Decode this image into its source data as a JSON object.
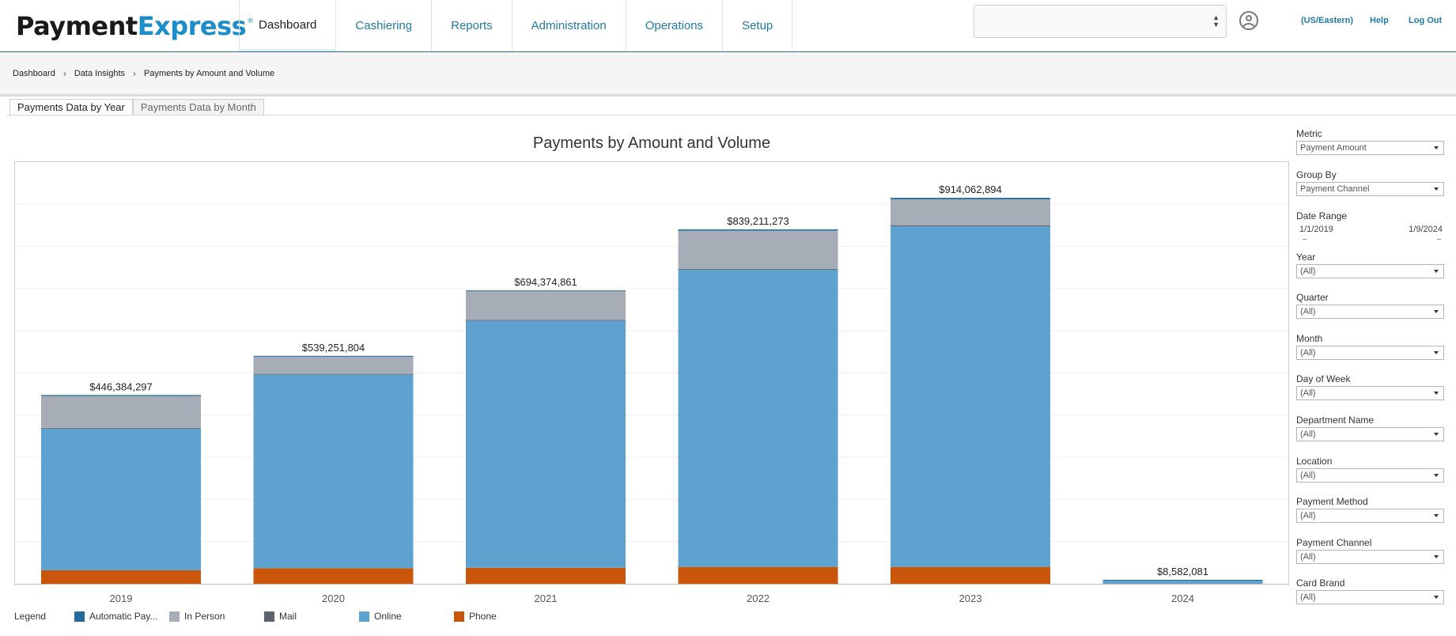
{
  "header": {
    "logo_part1": "Payment",
    "logo_part2": "Express",
    "logo_reg": "®",
    "nav": [
      {
        "label": "Dashboard",
        "active": true
      },
      {
        "label": "Cashiering",
        "active": false
      },
      {
        "label": "Reports",
        "active": false
      },
      {
        "label": "Administration",
        "active": false
      },
      {
        "label": "Operations",
        "active": false
      },
      {
        "label": "Setup",
        "active": false
      }
    ],
    "select_value": "",
    "timezone_link": "(US/Eastern)",
    "help_link": "Help",
    "logout_link": "Log Out"
  },
  "breadcrumb": [
    "Dashboard",
    "Data Insights",
    "Payments by Amount and Volume"
  ],
  "tabs": [
    {
      "label": "Payments Data by Year",
      "active": true
    },
    {
      "label": "Payments Data by Month",
      "active": false
    }
  ],
  "chart_data": {
    "type": "bar",
    "stacked": true,
    "title": "Payments by Amount and Volume",
    "categories": [
      "2019",
      "2020",
      "2021",
      "2022",
      "2023",
      "2024"
    ],
    "totals_labels": [
      "$446,384,297",
      "$539,251,804",
      "$694,374,861",
      "$839,211,273",
      "$914,062,894",
      "$8,582,081"
    ],
    "totals": [
      446384297,
      539251804,
      694374861,
      839211273,
      914062894,
      8582081
    ],
    "ylim": [
      0,
      1000000000
    ],
    "grid": true,
    "legend_position": "bottom-left",
    "series": [
      {
        "name": "Phone",
        "color": "#c9560a",
        "values": [
          32000000,
          37000000,
          38000000,
          40000000,
          40000000,
          0
        ]
      },
      {
        "name": "Online",
        "color": "#5ea3cf",
        "values": [
          336000000,
          459000000,
          586000000,
          705000000,
          808000000,
          7500000
        ]
      },
      {
        "name": "Mail",
        "color": "#5d6470",
        "values": [
          500000,
          500000,
          500000,
          500000,
          500000,
          0
        ]
      },
      {
        "name": "In Person",
        "color": "#a6adb6",
        "values": [
          75384297,
          40751804,
          67874861,
          90711273,
          62062894,
          0
        ]
      },
      {
        "name": "Automatic Pay...",
        "color": "#236b9a",
        "values": [
          2500000,
          2000000,
          2000000,
          3000000,
          3500000,
          1082081
        ]
      }
    ]
  },
  "legend": {
    "title": "Legend",
    "items": [
      {
        "name": "Automatic Pay...",
        "color": "#236b9a"
      },
      {
        "name": "In Person",
        "color": "#a6adb6"
      },
      {
        "name": "Mail",
        "color": "#5d6470"
      },
      {
        "name": "Online",
        "color": "#5ea3cf"
      },
      {
        "name": "Phone",
        "color": "#c9560a"
      }
    ]
  },
  "filters": {
    "metric": {
      "label": "Metric",
      "value": "Payment Amount"
    },
    "group_by": {
      "label": "Group By",
      "value": "Payment Channel"
    },
    "date_range": {
      "label": "Date Range",
      "from": "1/1/2019",
      "to": "1/9/2024"
    },
    "year": {
      "label": "Year",
      "value": "(All)"
    },
    "quarter": {
      "label": "Quarter",
      "value": "(All)"
    },
    "month": {
      "label": "Month",
      "value": "(All)"
    },
    "day_of_week": {
      "label": "Day of Week",
      "value": "(All)"
    },
    "department_name": {
      "label": "Department Name",
      "value": "(All)"
    },
    "location": {
      "label": "Location",
      "value": "(All)"
    },
    "payment_method": {
      "label": "Payment Method",
      "value": "(All)"
    },
    "payment_channel": {
      "label": "Payment Channel",
      "value": "(All)"
    },
    "card_brand": {
      "label": "Card Brand",
      "value": "(All)"
    }
  }
}
